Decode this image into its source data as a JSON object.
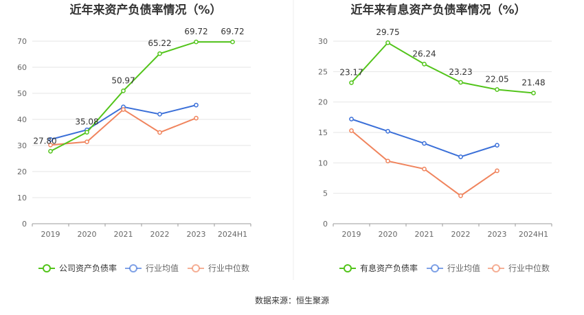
{
  "source": "数据来源：恒生聚源",
  "chart_data": [
    {
      "type": "line",
      "title": "近年来资产负债率情况（%）",
      "categories": [
        "2019",
        "2020",
        "2021",
        "2022",
        "2023",
        "2024H1"
      ],
      "ylim": [
        0,
        70
      ],
      "yticks": [
        0,
        10,
        20,
        30,
        40,
        50,
        60,
        70
      ],
      "series": [
        {
          "name": "公司资产负债率",
          "color": "#52c41a",
          "values": [
            27.8,
            35.08,
            50.97,
            65.22,
            69.72,
            69.72
          ],
          "labels": [
            "27.80",
            "35.08",
            "50.97",
            "65.22",
            "69.72",
            "69.72"
          ]
        },
        {
          "name": "行业均值",
          "color": "#3a6fd8",
          "values": [
            32.3,
            36.0,
            44.8,
            42.0,
            45.5,
            null
          ]
        },
        {
          "name": "行业中位数",
          "color": "#f0845d",
          "values": [
            30.2,
            31.4,
            43.8,
            35.0,
            40.5,
            null
          ]
        }
      ]
    },
    {
      "type": "line",
      "title": "近年来有息资产负债率情况（%）",
      "categories": [
        "2019",
        "2020",
        "2021",
        "2022",
        "2023",
        "2024H1"
      ],
      "ylim": [
        0,
        30
      ],
      "yticks": [
        0,
        5,
        10,
        15,
        20,
        25,
        30
      ],
      "series": [
        {
          "name": "有息资产负债率",
          "color": "#52c41a",
          "values": [
            23.17,
            29.75,
            26.24,
            23.23,
            22.05,
            21.48
          ],
          "labels": [
            "23.17",
            "29.75",
            "26.24",
            "23.23",
            "22.05",
            "21.48"
          ]
        },
        {
          "name": "行业均值",
          "color": "#3a6fd8",
          "values": [
            17.2,
            15.2,
            13.2,
            11.0,
            12.9,
            null
          ]
        },
        {
          "name": "行业中位数",
          "color": "#f0845d",
          "values": [
            15.3,
            10.3,
            9.0,
            4.6,
            8.7,
            null
          ]
        }
      ]
    }
  ]
}
